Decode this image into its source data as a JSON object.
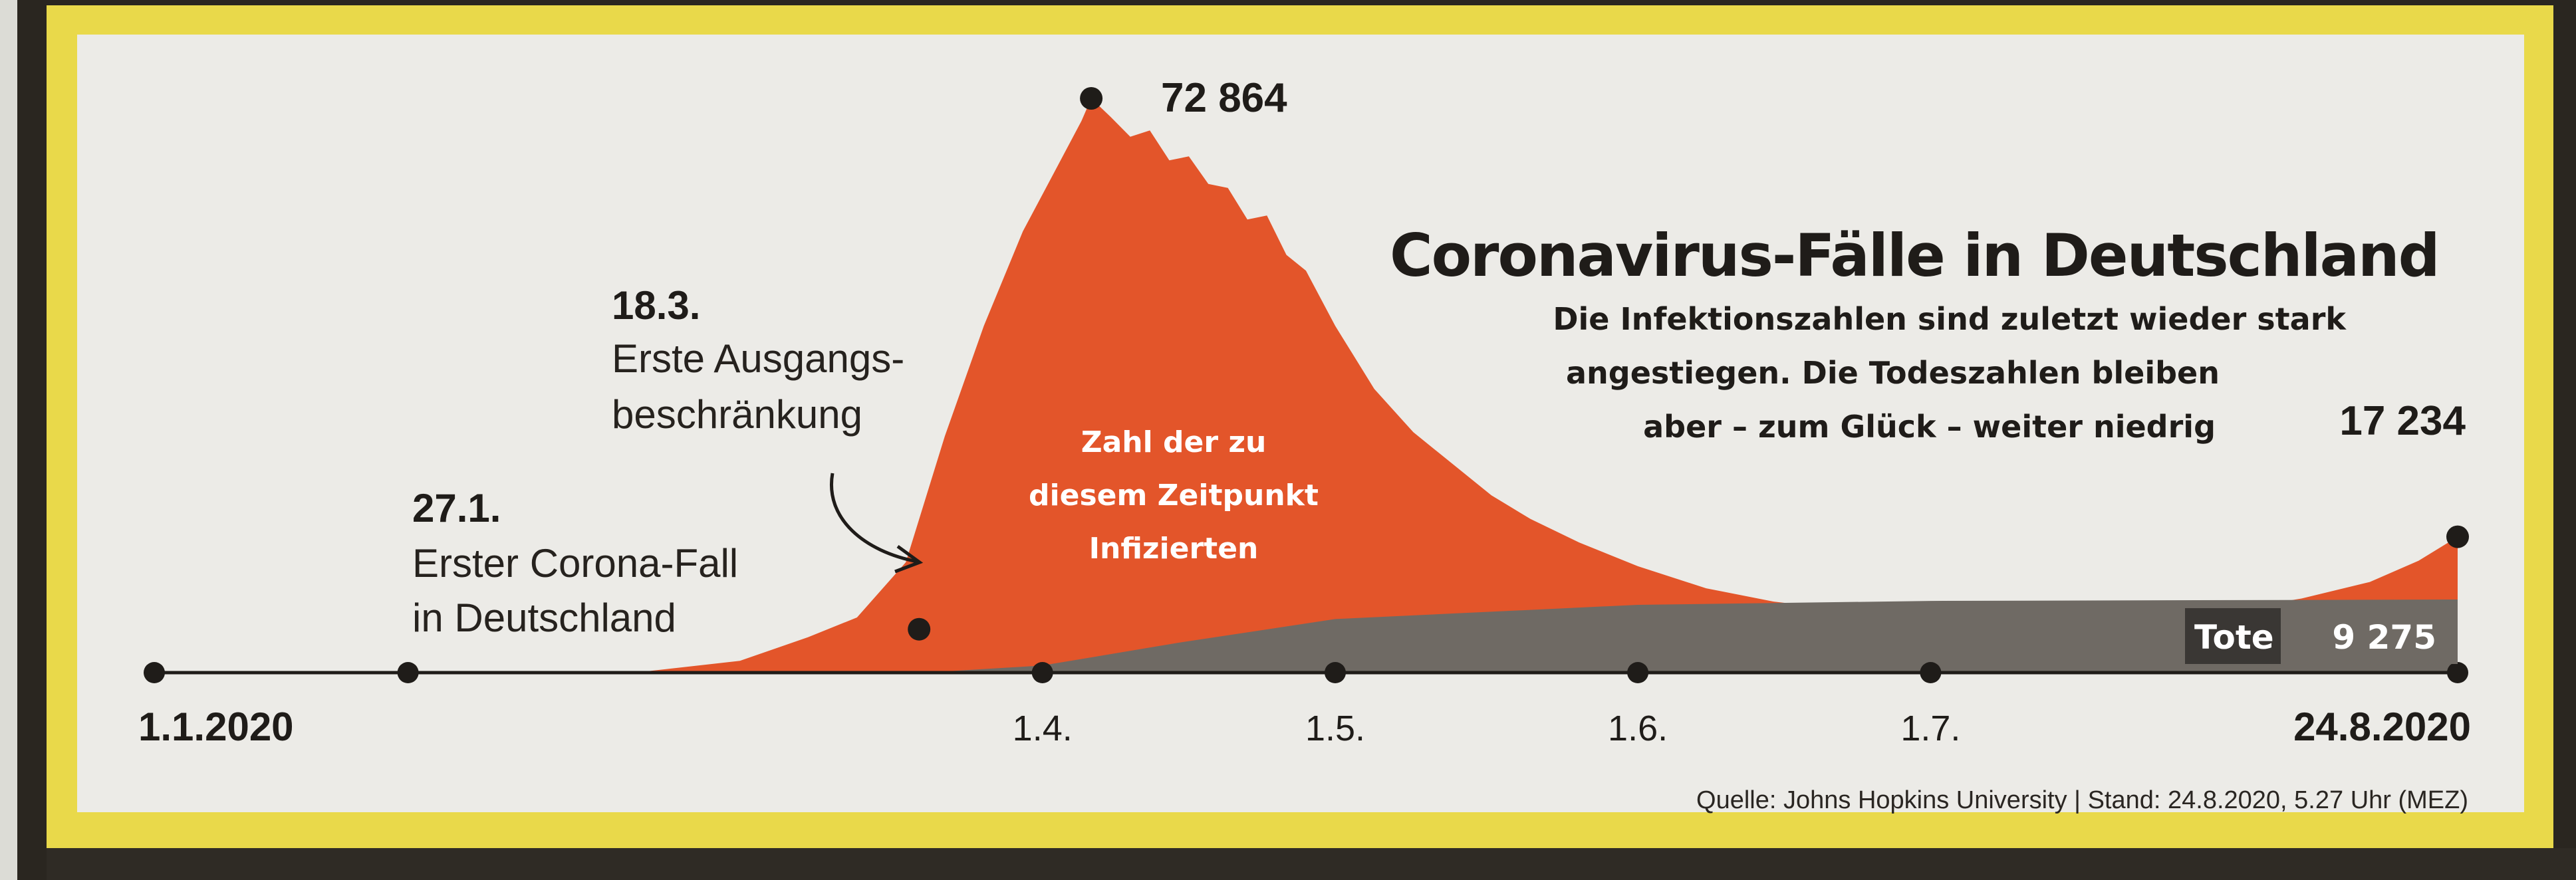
{
  "colors": {
    "infected": "#e3552a",
    "deaths": "#6f6a64",
    "deaths_box": "#3a3734",
    "axis": "#1f1c19",
    "background": "#ecebe7",
    "frame": "#e9d94a"
  },
  "chart_data": {
    "type": "area",
    "title": "Coronavirus-Fälle in Deutschland",
    "subtitle": [
      "Die Infektionszahlen sind zuletzt wieder stark",
      "angestiegen. Die Todeszahlen bleiben",
      "aber – zum Glück – weiter niedrig"
    ],
    "x_range": [
      "2020-01-01",
      "2020-08-24"
    ],
    "y_range": [
      0,
      75000
    ],
    "grid": false,
    "ticks": [
      {
        "date": "2020-01-01",
        "label": "1.1.2020",
        "bold": true
      },
      {
        "date": "2020-01-27",
        "label": "",
        "bold": false
      },
      {
        "date": "2020-04-01",
        "label": "1.4.",
        "bold": false
      },
      {
        "date": "2020-05-01",
        "label": "1.5.",
        "bold": false
      },
      {
        "date": "2020-06-01",
        "label": "1.6.",
        "bold": false
      },
      {
        "date": "2020-07-01",
        "label": "1.7.",
        "bold": false
      },
      {
        "date": "2020-08-24",
        "label": "24.8.2020",
        "bold": true
      }
    ],
    "series": [
      {
        "name": "Zahl der zu diesem Zeitpunkt Infizierten",
        "x": [
          "2020-01-01",
          "2020-02-20",
          "2020-03-01",
          "2020-03-08",
          "2020-03-13",
          "2020-03-18",
          "2020-03-22",
          "2020-03-26",
          "2020-03-30",
          "2020-04-02",
          "2020-04-05",
          "2020-04-06",
          "2020-04-08",
          "2020-04-10",
          "2020-04-12",
          "2020-04-14",
          "2020-04-16",
          "2020-04-18",
          "2020-04-20",
          "2020-04-22",
          "2020-04-24",
          "2020-04-26",
          "2020-04-28",
          "2020-05-01",
          "2020-05-05",
          "2020-05-09",
          "2020-05-13",
          "2020-05-17",
          "2020-05-21",
          "2020-05-26",
          "2020-06-01",
          "2020-06-08",
          "2020-06-15",
          "2020-06-22",
          "2020-07-01",
          "2020-07-08",
          "2020-07-15",
          "2020-07-22",
          "2020-08-01",
          "2020-08-08",
          "2020-08-15",
          "2020-08-20",
          "2020-08-24"
        ],
        "values": [
          0,
          100,
          1500,
          4500,
          7000,
          14000,
          30000,
          44000,
          56000,
          63000,
          70000,
          72864,
          70500,
          68000,
          68800,
          65000,
          65500,
          62000,
          61500,
          57500,
          58000,
          53000,
          51000,
          44000,
          36000,
          30500,
          26500,
          22500,
          19500,
          16500,
          13500,
          10700,
          9000,
          8000,
          7700,
          7800,
          8200,
          7900,
          8000,
          9400,
          11500,
          14200,
          17234
        ]
      },
      {
        "name": "Tote",
        "x": [
          "2020-01-01",
          "2020-03-20",
          "2020-04-01",
          "2020-04-15",
          "2020-05-01",
          "2020-06-01",
          "2020-07-01",
          "2020-08-24"
        ],
        "values": [
          0,
          0,
          900,
          3800,
          6800,
          8600,
          9100,
          9275
        ],
        "box_label": "Tote",
        "box_value": "9 275"
      }
    ],
    "annotations": [
      {
        "date": "2020-01-27",
        "title": "27.1.",
        "lines": [
          "Erster Corona-Fall",
          "in Deutschland"
        ]
      },
      {
        "date": "2020-03-18",
        "title": "18.3.",
        "lines": [
          "Erste Ausgangs-",
          "beschränkung"
        ]
      }
    ],
    "area_label": [
      "Zahl der zu",
      "diesem Zeitpunkt",
      "Infizierten"
    ],
    "peak_label": "72 864",
    "last_label": "17 234"
  },
  "source": "Quelle: Johns Hopkins University | Stand: 24.8.2020, 5.27 Uhr (MEZ)"
}
